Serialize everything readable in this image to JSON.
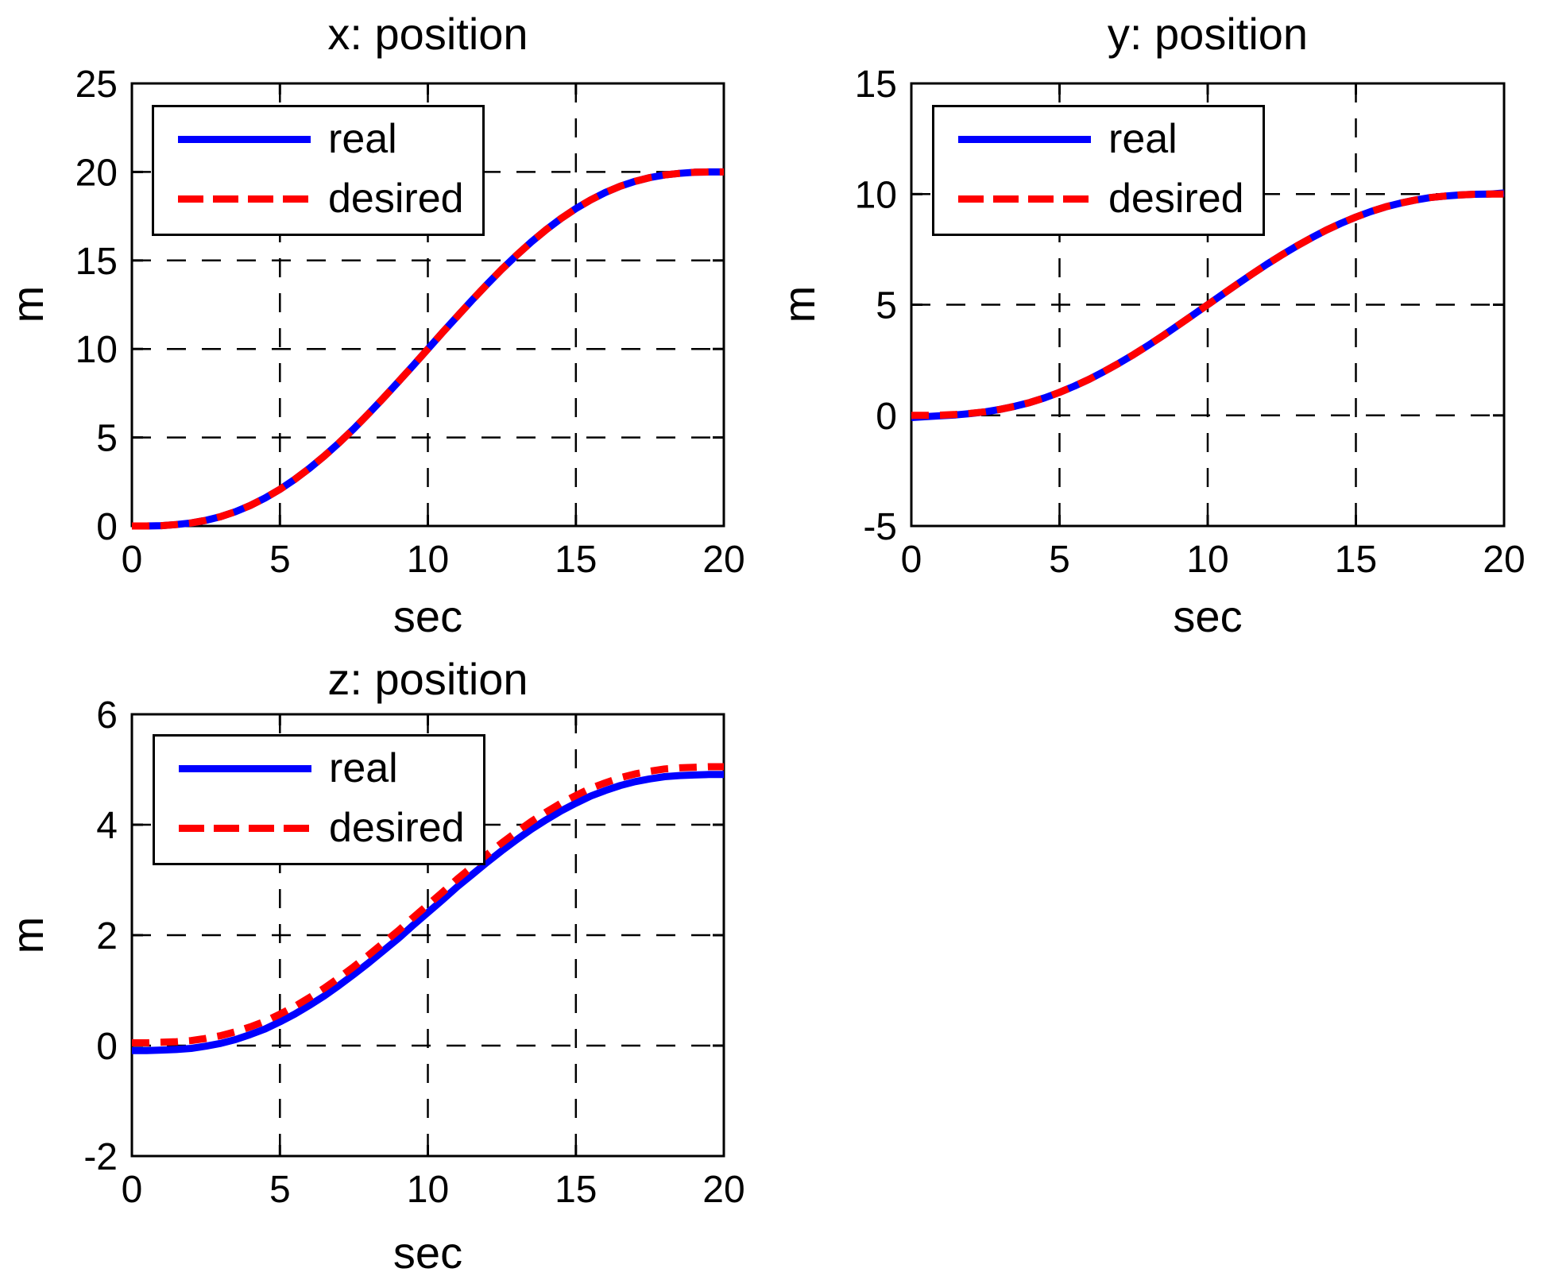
{
  "figure": {
    "background": "#ffffff",
    "text_color": "#000000",
    "axis_color": "#000000",
    "grid_color": "#000000"
  },
  "legend": {
    "position": "upper-left",
    "border_color": "#000000",
    "background": "#ffffff",
    "items": [
      {
        "label": "real",
        "color": "#0000ff",
        "line_style": "solid"
      },
      {
        "label": "desired",
        "color": "#ff0000",
        "line_style": "dashed"
      }
    ]
  },
  "chart_data": [
    {
      "type": "line",
      "title": "x: position",
      "xlabel": "sec",
      "ylabel": "m",
      "xlim": [
        0,
        20
      ],
      "ylim": [
        0,
        25
      ],
      "xticks": [
        0,
        5,
        10,
        15,
        20
      ],
      "yticks": [
        0,
        5,
        10,
        15,
        20,
        25
      ],
      "grid": true,
      "legend_position": "upper-left",
      "x": [
        0,
        0.5,
        1,
        1.5,
        2,
        2.5,
        3,
        3.5,
        4,
        4.5,
        5,
        5.5,
        6,
        6.5,
        7,
        7.5,
        8,
        8.5,
        9,
        9.5,
        10,
        10.5,
        11,
        11.5,
        12,
        12.5,
        13,
        13.5,
        14,
        14.5,
        15,
        15.5,
        16,
        16.5,
        17,
        17.5,
        18,
        18.5,
        19,
        19.5,
        20
      ],
      "series": [
        {
          "name": "real",
          "color": "#0000ff",
          "line_style": "solid",
          "values": [
            0,
            0,
            0.02,
            0.08,
            0.17,
            0.32,
            0.53,
            0.81,
            1.16,
            1.58,
            2.07,
            2.63,
            3.26,
            3.95,
            4.7,
            5.5,
            6.35,
            7.23,
            8.14,
            9.06,
            10,
            10.94,
            11.86,
            12.77,
            13.65,
            14.5,
            15.3,
            16.05,
            16.74,
            17.37,
            17.93,
            18.42,
            18.84,
            19.19,
            19.47,
            19.68,
            19.83,
            19.92,
            19.98,
            20,
            20
          ]
        },
        {
          "name": "desired",
          "color": "#ff0000",
          "line_style": "dashed",
          "values": [
            0,
            0,
            0.02,
            0.08,
            0.17,
            0.32,
            0.53,
            0.81,
            1.16,
            1.58,
            2.07,
            2.63,
            3.26,
            3.95,
            4.7,
            5.5,
            6.35,
            7.23,
            8.14,
            9.06,
            10,
            10.94,
            11.86,
            12.77,
            13.65,
            14.5,
            15.3,
            16.05,
            16.74,
            17.37,
            17.93,
            18.42,
            18.84,
            19.19,
            19.47,
            19.68,
            19.83,
            19.92,
            19.98,
            20,
            20
          ]
        }
      ]
    },
    {
      "type": "line",
      "title": "y: position",
      "xlabel": "sec",
      "ylabel": "m",
      "xlim": [
        0,
        20
      ],
      "ylim": [
        -5,
        15
      ],
      "xticks": [
        0,
        5,
        10,
        15,
        20
      ],
      "yticks": [
        -5,
        0,
        5,
        10,
        15
      ],
      "grid": true,
      "legend_position": "upper-left",
      "x": [
        0,
        0.5,
        1,
        1.5,
        2,
        2.5,
        3,
        3.5,
        4,
        4.5,
        5,
        5.5,
        6,
        6.5,
        7,
        7.5,
        8,
        8.5,
        9,
        9.5,
        10,
        10.5,
        11,
        11.5,
        12,
        12.5,
        13,
        13.5,
        14,
        14.5,
        15,
        15.5,
        16,
        16.5,
        17,
        17.5,
        18,
        18.5,
        19,
        19.5,
        20
      ],
      "series": [
        {
          "name": "real",
          "color": "#0000ff",
          "line_style": "solid",
          "values": [
            -0.1,
            -0.06,
            -0.02,
            0.02,
            0.08,
            0.16,
            0.27,
            0.41,
            0.58,
            0.79,
            1.04,
            1.32,
            1.63,
            1.98,
            2.35,
            2.75,
            3.17,
            3.61,
            4.07,
            4.53,
            5,
            5.47,
            5.93,
            6.39,
            6.83,
            7.25,
            7.65,
            8.02,
            8.37,
            8.68,
            8.96,
            9.21,
            9.42,
            9.59,
            9.73,
            9.84,
            9.91,
            9.96,
            9.99,
            10,
            10.05
          ]
        },
        {
          "name": "desired",
          "color": "#ff0000",
          "line_style": "dashed",
          "values": [
            0,
            0,
            0.01,
            0.04,
            0.09,
            0.16,
            0.27,
            0.41,
            0.58,
            0.79,
            1.04,
            1.32,
            1.63,
            1.98,
            2.35,
            2.75,
            3.17,
            3.61,
            4.07,
            4.53,
            5,
            5.47,
            5.93,
            6.39,
            6.83,
            7.25,
            7.65,
            8.02,
            8.37,
            8.68,
            8.96,
            9.21,
            9.42,
            9.59,
            9.73,
            9.84,
            9.91,
            9.96,
            9.99,
            10,
            10
          ]
        }
      ]
    },
    {
      "type": "line",
      "title": "z: position",
      "xlabel": "sec",
      "ylabel": "m",
      "xlim": [
        0,
        20
      ],
      "ylim": [
        -2,
        6
      ],
      "xticks": [
        0,
        5,
        10,
        15,
        20
      ],
      "yticks": [
        -2,
        0,
        2,
        4,
        6
      ],
      "grid": true,
      "legend_position": "upper-left",
      "x": [
        0,
        0.5,
        1,
        1.5,
        2,
        2.5,
        3,
        3.5,
        4,
        4.5,
        5,
        5.5,
        6,
        6.5,
        7,
        7.5,
        8,
        8.5,
        9,
        9.5,
        10,
        10.5,
        11,
        11.5,
        12,
        12.5,
        13,
        13.5,
        14,
        14.5,
        15,
        15.5,
        16,
        16.5,
        17,
        17.5,
        18,
        18.5,
        19,
        19.5,
        20
      ],
      "series": [
        {
          "name": "real",
          "color": "#0000ff",
          "line_style": "solid",
          "values": [
            -0.09,
            -0.09,
            -0.08,
            -0.07,
            -0.05,
            -0.01,
            0.04,
            0.11,
            0.2,
            0.3,
            0.43,
            0.57,
            0.73,
            0.9,
            1.09,
            1.29,
            1.5,
            1.72,
            1.94,
            2.18,
            2.41,
            2.64,
            2.88,
            3.1,
            3.32,
            3.53,
            3.73,
            3.92,
            4.09,
            4.25,
            4.39,
            4.52,
            4.62,
            4.71,
            4.78,
            4.83,
            4.87,
            4.89,
            4.9,
            4.91,
            4.91
          ]
        },
        {
          "name": "desired",
          "color": "#ff0000",
          "line_style": "dashed",
          "values": [
            0.05,
            0.05,
            0.06,
            0.07,
            0.09,
            0.13,
            0.18,
            0.25,
            0.34,
            0.44,
            0.57,
            0.71,
            0.87,
            1.04,
            1.23,
            1.43,
            1.64,
            1.86,
            2.08,
            2.32,
            2.55,
            2.78,
            3.02,
            3.24,
            3.46,
            3.67,
            3.87,
            4.06,
            4.23,
            4.39,
            4.53,
            4.66,
            4.76,
            4.85,
            4.92,
            4.97,
            5.01,
            5.03,
            5.04,
            5.05,
            5.05
          ]
        }
      ]
    }
  ]
}
